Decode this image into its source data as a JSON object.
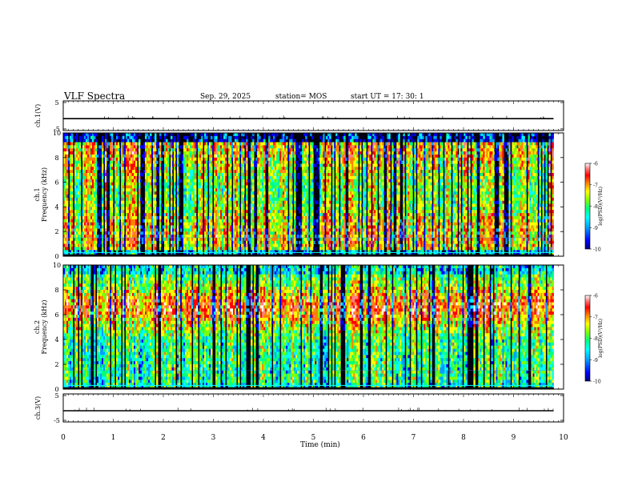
{
  "header": {
    "title": "VLF Spectra",
    "date": "Sep. 29, 2025",
    "station": "station= MOS",
    "start": "start  UT =   17: 30: 1"
  },
  "chart_data": [
    {
      "type": "line",
      "panel": "ch1-waveform",
      "ylabel": "ch.1(V)",
      "ylim": [
        -5,
        5
      ],
      "yticks": [
        "5",
        "-5"
      ],
      "xlim": [
        0,
        10
      ],
      "series": [
        {
          "values": [
            -1,
            -1,
            -1,
            -1,
            -1,
            -1,
            -1,
            -1,
            -1,
            -1
          ]
        }
      ]
    },
    {
      "type": "heatmap",
      "panel": "ch1-spectrogram",
      "ylabel": "Frequency (kHz)",
      "ylabel2": "ch.1",
      "ylim": [
        0,
        10
      ],
      "yticks": [
        "0",
        "2",
        "4",
        "6",
        "8",
        "10"
      ],
      "xlim": [
        0,
        10
      ],
      "data_end_min": 9.8,
      "colorbar": {
        "label": "log(PSD)(V²/Hz)",
        "range": [
          -10,
          -6
        ],
        "ticks": [
          "-6",
          "-7",
          "-8",
          "-9",
          "-10"
        ]
      }
    },
    {
      "type": "heatmap",
      "panel": "ch2-spectrogram",
      "ylabel": "Frequency (kHz)",
      "ylabel2": "ch.2",
      "ylim": [
        0,
        10
      ],
      "yticks": [
        "0",
        "2",
        "4",
        "6",
        "8",
        "10"
      ],
      "xlim": [
        0,
        10
      ],
      "data_end_min": 9.8,
      "colorbar": {
        "label": "log(PSD)(V²/Hz)",
        "range": [
          -10,
          -6
        ],
        "ticks": [
          "-6",
          "-7",
          "-8",
          "-9",
          "-10"
        ]
      }
    },
    {
      "type": "line",
      "panel": "ch3-waveform",
      "ylabel": "ch.3(V)",
      "ylim": [
        -5,
        5
      ],
      "yticks": [
        "5",
        "-5"
      ],
      "xlim": [
        0,
        10
      ],
      "xlabel": "Time (min)",
      "xticks": [
        "0",
        "1",
        "2",
        "3",
        "4",
        "5",
        "6",
        "7",
        "8",
        "9",
        "10"
      ],
      "series": [
        {
          "values": [
            -1,
            -1,
            -1,
            -1,
            -1,
            -1,
            -1,
            -1,
            -1,
            -1
          ]
        }
      ]
    }
  ],
  "colors": {
    "colormap": [
      "#000080",
      "#0000ff",
      "#00a0ff",
      "#00ffff",
      "#00ff80",
      "#80ff00",
      "#ffff00",
      "#ff8000",
      "#ff0000",
      "#ff8080",
      "#ffffff"
    ]
  }
}
